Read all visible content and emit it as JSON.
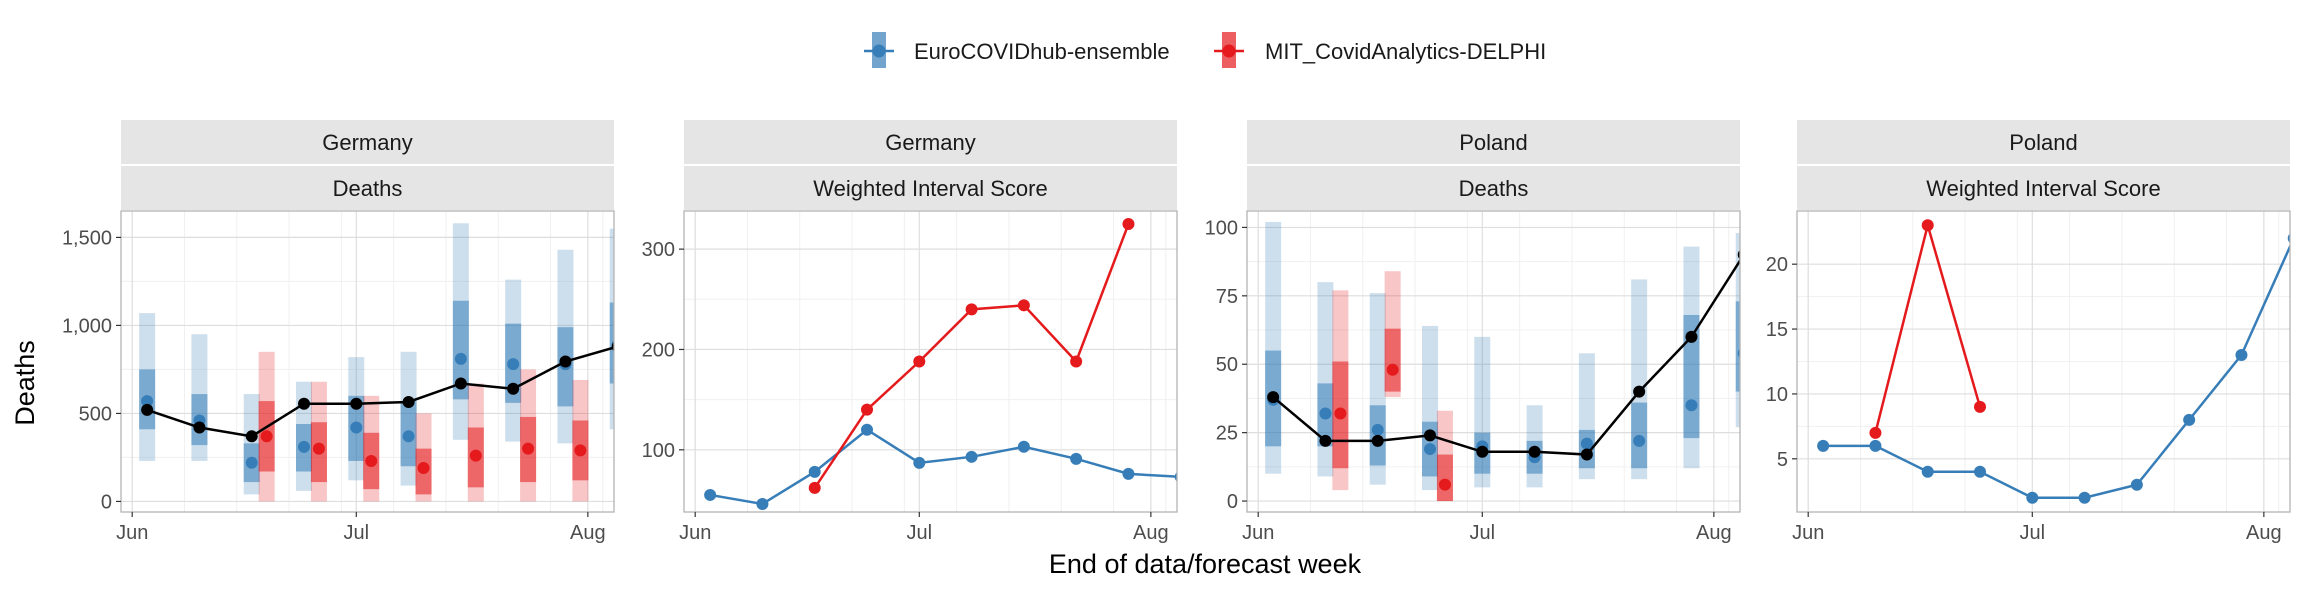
{
  "legend": [
    {
      "label": "EuroCOVIDhub-ensemble",
      "color": "#377EB8"
    },
    {
      "label": "MIT_CovidAnalytics-DELPHI",
      "color": "#E41A1C"
    }
  ],
  "y_axis_title": "Deaths",
  "x_axis_title": "End of data/forecast week",
  "observed_color": "#000000",
  "chart_data": [
    {
      "type": "line",
      "location": "Germany",
      "metric": "Deaths",
      "xlim": [
        -1.5,
        64.5
      ],
      "ylim": [
        -60,
        1650
      ],
      "xticks": [
        {
          "label": "Jun",
          "x": 0
        },
        {
          "label": "Jul",
          "x": 30
        },
        {
          "label": "Aug",
          "x": 61
        }
      ],
      "yticks": [
        {
          "label": "0",
          "y": 0
        },
        {
          "label": "500",
          "y": 500
        },
        {
          "label": "1,000",
          "y": 1000
        },
        {
          "label": "1,500",
          "y": 1500
        }
      ],
      "observed": {
        "x": [
          2,
          9,
          16,
          23,
          30,
          37,
          44,
          51,
          58,
          65
        ],
        "y": [
          520,
          420,
          370,
          555,
          555,
          565,
          670,
          640,
          795,
          880
        ]
      },
      "forecasts": [
        {
          "model": "EuroCOVIDhub-ensemble",
          "offset": 0,
          "x": [
            2,
            9,
            16,
            23,
            30,
            37,
            44,
            51,
            58,
            65
          ],
          "median": [
            570,
            460,
            220,
            310,
            420,
            370,
            810,
            780,
            780,
            890
          ],
          "q50": [
            [
              410,
              750
            ],
            [
              320,
              610
            ],
            [
              110,
              330
            ],
            [
              170,
              440
            ],
            [
              230,
              600
            ],
            [
              200,
              570
            ],
            [
              580,
              1140
            ],
            [
              560,
              1010
            ],
            [
              540,
              990
            ],
            [
              670,
              1130
            ]
          ],
          "q90": [
            [
              230,
              1070
            ],
            [
              230,
              950
            ],
            [
              40,
              610
            ],
            [
              60,
              680
            ],
            [
              120,
              820
            ],
            [
              90,
              850
            ],
            [
              350,
              1580
            ],
            [
              340,
              1260
            ],
            [
              330,
              1430
            ],
            [
              410,
              1550
            ]
          ]
        },
        {
          "model": "MIT_CovidAnalytics-DELPHI",
          "offset": 2,
          "x": [
            16,
            23,
            30,
            37,
            44,
            51,
            58
          ],
          "median": [
            370,
            300,
            230,
            190,
            260,
            300,
            290
          ],
          "q50": [
            [
              170,
              570
            ],
            [
              110,
              450
            ],
            [
              70,
              390
            ],
            [
              40,
              300
            ],
            [
              80,
              420
            ],
            [
              110,
              480
            ],
            [
              120,
              460
            ]
          ],
          "q90": [
            [
              0,
              850
            ],
            [
              0,
              680
            ],
            [
              0,
              600
            ],
            [
              0,
              500
            ],
            [
              0,
              670
            ],
            [
              0,
              750
            ],
            [
              0,
              690
            ]
          ]
        }
      ]
    },
    {
      "type": "line",
      "location": "Germany",
      "metric": "Weighted Interval Score",
      "xlim": [
        -1.5,
        64.5
      ],
      "ylim": [
        38,
        338
      ],
      "xticks": [
        {
          "label": "Jun",
          "x": 0
        },
        {
          "label": "Jul",
          "x": 30
        },
        {
          "label": "Aug",
          "x": 61
        }
      ],
      "yticks": [
        {
          "label": "100",
          "y": 100
        },
        {
          "label": "200",
          "y": 200
        },
        {
          "label": "300",
          "y": 300
        }
      ],
      "series": [
        {
          "name": "EuroCOVIDhub-ensemble",
          "color": "#377EB8",
          "x": [
            2,
            9,
            16,
            23,
            30,
            37,
            44,
            51,
            58,
            65
          ],
          "y": [
            55,
            46,
            78,
            120,
            87,
            93,
            103,
            91,
            76,
            73
          ]
        },
        {
          "name": "MIT_CovidAnalytics-DELPHI",
          "color": "#E41A1C",
          "x": [
            16,
            23,
            30,
            37,
            44,
            51,
            58
          ],
          "y": [
            62,
            140,
            188,
            240,
            244,
            188,
            325
          ]
        }
      ]
    },
    {
      "type": "line",
      "location": "Poland",
      "metric": "Deaths",
      "xlim": [
        -1.5,
        64.5
      ],
      "ylim": [
        -4,
        106
      ],
      "xticks": [
        {
          "label": "Jun",
          "x": 0
        },
        {
          "label": "Jul",
          "x": 30
        },
        {
          "label": "Aug",
          "x": 61
        }
      ],
      "yticks": [
        {
          "label": "0",
          "y": 0
        },
        {
          "label": "25",
          "y": 25
        },
        {
          "label": "50",
          "y": 50
        },
        {
          "label": "75",
          "y": 75
        },
        {
          "label": "100",
          "y": 100
        }
      ],
      "observed": {
        "x": [
          2,
          9,
          16,
          23,
          30,
          37,
          44,
          51,
          58,
          65
        ],
        "y": [
          38,
          22,
          22,
          24,
          18,
          18,
          17,
          40,
          60,
          90
        ]
      },
      "forecasts": [
        {
          "model": "EuroCOVIDhub-ensemble",
          "offset": 0,
          "x": [
            2,
            9,
            16,
            23,
            30,
            37,
            44,
            51,
            58,
            65
          ],
          "median": [
            37,
            32,
            26,
            19,
            20,
            16,
            21,
            22,
            35,
            54
          ],
          "q50": [
            [
              20,
              55
            ],
            [
              20,
              43
            ],
            [
              13,
              35
            ],
            [
              9,
              29
            ],
            [
              10,
              25
            ],
            [
              10,
              22
            ],
            [
              12,
              26
            ],
            [
              12,
              36
            ],
            [
              23,
              68
            ],
            [
              40,
              73
            ]
          ],
          "q90": [
            [
              10,
              102
            ],
            [
              9,
              80
            ],
            [
              6,
              76
            ],
            [
              4,
              64
            ],
            [
              5,
              60
            ],
            [
              5,
              35
            ],
            [
              8,
              54
            ],
            [
              8,
              81
            ],
            [
              12,
              93
            ],
            [
              27,
              98
            ]
          ]
        },
        {
          "model": "MIT_CovidAnalytics-DELPHI",
          "offset": 2,
          "x": [
            9,
            16,
            23
          ],
          "median": [
            32,
            48,
            6
          ],
          "q50": [
            [
              12,
              51
            ],
            [
              40,
              63
            ],
            [
              0,
              17
            ]
          ],
          "q90": [
            [
              4,
              77
            ],
            [
              38,
              84
            ],
            [
              0,
              33
            ]
          ]
        }
      ]
    },
    {
      "type": "line",
      "location": "Poland",
      "metric": "Weighted Interval Score",
      "xlim": [
        -1.5,
        64.5
      ],
      "ylim": [
        0.9,
        24.1
      ],
      "xticks": [
        {
          "label": "Jun",
          "x": 0
        },
        {
          "label": "Jul",
          "x": 30
        },
        {
          "label": "Aug",
          "x": 61
        }
      ],
      "yticks": [
        {
          "label": "5",
          "y": 5
        },
        {
          "label": "10",
          "y": 10
        },
        {
          "label": "15",
          "y": 15
        },
        {
          "label": "20",
          "y": 20
        }
      ],
      "series": [
        {
          "name": "EuroCOVIDhub-ensemble",
          "color": "#377EB8",
          "x": [
            2,
            9,
            16,
            23,
            30,
            37,
            44,
            51,
            58,
            65
          ],
          "y": [
            6,
            6,
            4,
            4,
            2,
            2,
            3,
            8,
            13,
            22
          ]
        },
        {
          "name": "MIT_CovidAnalytics-DELPHI",
          "color": "#E41A1C",
          "x": [
            9,
            16,
            23
          ],
          "y": [
            7,
            23,
            9
          ]
        }
      ]
    }
  ]
}
